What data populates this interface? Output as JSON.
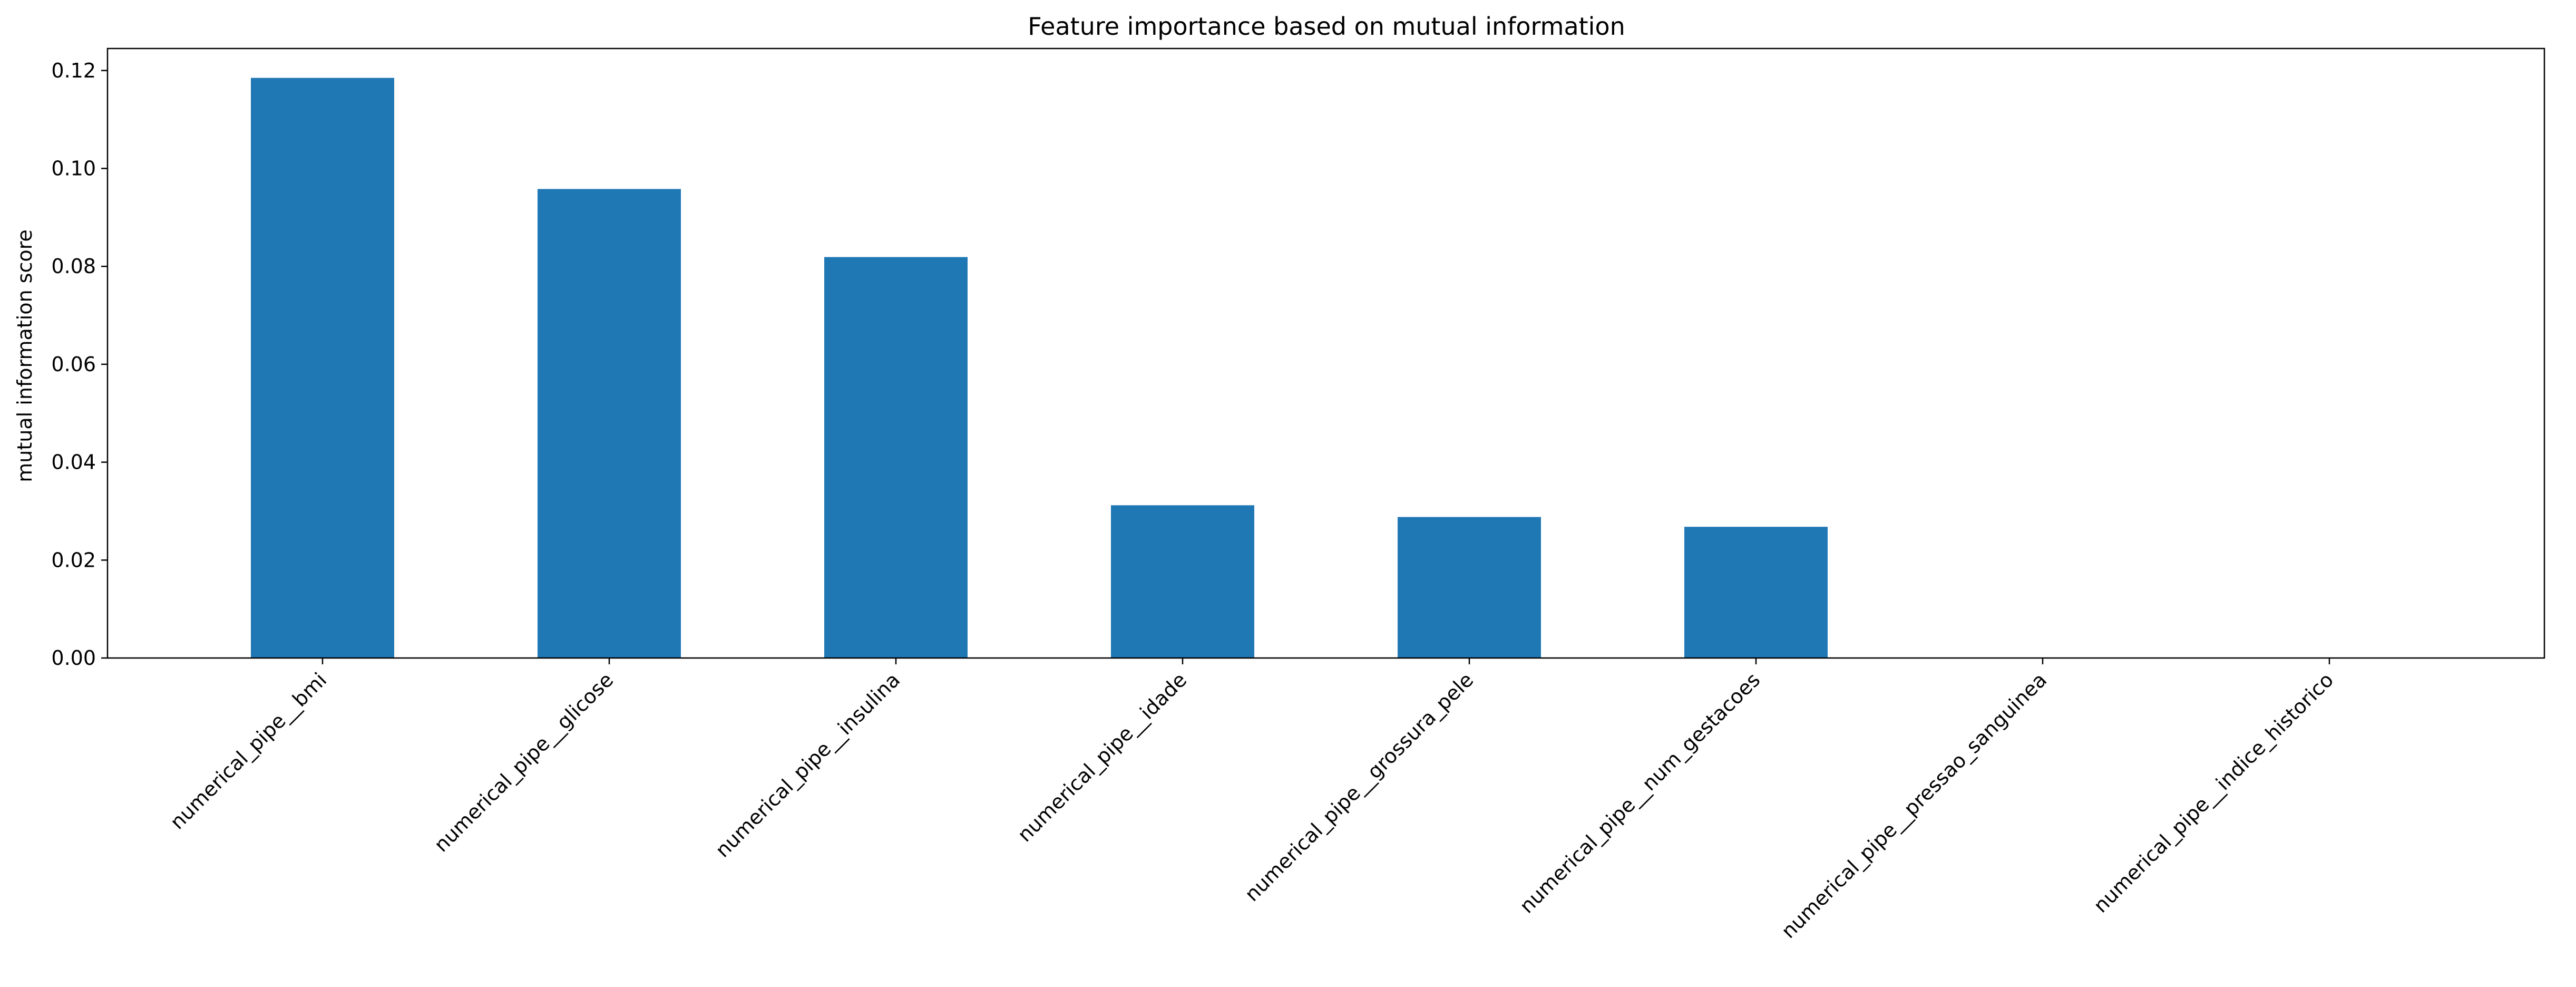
{
  "chart_data": {
    "type": "bar",
    "title": "Feature importance based on mutual information",
    "xlabel": "",
    "ylabel": "mutual information score",
    "categories": [
      "numerical_pipe__bmi",
      "numerical_pipe__glicose",
      "numerical_pipe__insulina",
      "numerical_pipe__idade",
      "numerical_pipe__grossura_pele",
      "numerical_pipe__num_gestacoes",
      "numerical_pipe__pressao_sanguinea",
      "numerical_pipe__indice_historico"
    ],
    "values": [
      0.1185,
      0.0958,
      0.0819,
      0.0312,
      0.0288,
      0.0268,
      0.0,
      0.0
    ],
    "ylim": [
      0,
      0.1245
    ],
    "yticks": [
      0.0,
      0.02,
      0.04,
      0.06,
      0.08,
      0.1,
      0.12
    ],
    "ytick_labels": [
      "0.00",
      "0.02",
      "0.04",
      "0.06",
      "0.08",
      "0.10",
      "0.12"
    ],
    "bar_color": "#1f77b4",
    "grid": false,
    "legend": "none",
    "xtick_rotation_deg": 45
  }
}
